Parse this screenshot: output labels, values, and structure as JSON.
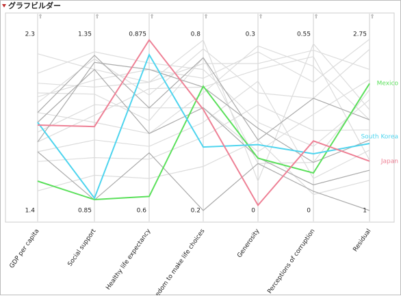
{
  "chart_data": {
    "type": "parallel",
    "title": "グラフビルダー",
    "axes": [
      {
        "label": "GDP per capita",
        "lim": [
          1.4,
          2.3
        ]
      },
      {
        "label": "Social support",
        "lim": [
          0.85,
          1.35
        ]
      },
      {
        "label": "Healthy life expectancy",
        "lim": [
          0.6,
          0.875
        ]
      },
      {
        "label": "Freedom to make life choices",
        "lim": [
          0.2,
          0.8
        ]
      },
      {
        "label": "Generosity",
        "lim": [
          0,
          0.3
        ]
      },
      {
        "label": "Perceptions of corruption",
        "lim": [
          0,
          0.55
        ]
      },
      {
        "label": "Residual",
        "lim": [
          1,
          2.75
        ]
      }
    ],
    "series": [
      {
        "color": "#dcdcdc",
        "values": [
          2.05,
          1.2,
          0.8,
          0.7,
          0.25,
          0.5,
          2.4
        ]
      },
      {
        "color": "#dcdcdc",
        "values": [
          1.95,
          1.28,
          0.78,
          0.75,
          0.2,
          0.35,
          2.6
        ]
      },
      {
        "color": "#dcdcdc",
        "values": [
          1.9,
          1.1,
          0.72,
          0.6,
          0.28,
          0.45,
          1.9
        ]
      },
      {
        "color": "#dcdcdc",
        "values": [
          2.1,
          1.3,
          0.83,
          0.68,
          0.15,
          0.2,
          2.1
        ]
      },
      {
        "color": "#dcdcdc",
        "values": [
          1.8,
          1.15,
          0.76,
          0.55,
          0.1,
          0.3,
          2.3
        ]
      },
      {
        "color": "#dcdcdc",
        "values": [
          1.7,
          1.05,
          0.7,
          0.5,
          0.22,
          0.1,
          1.6
        ]
      },
      {
        "color": "#dcdcdc",
        "values": [
          2.2,
          1.25,
          0.8,
          0.78,
          0.05,
          0.52,
          2.0
        ]
      },
      {
        "color": "#dcdcdc",
        "values": [
          1.65,
          1.0,
          0.68,
          0.45,
          0.18,
          0.25,
          1.8
        ]
      },
      {
        "color": "#dcdcdc",
        "values": [
          1.98,
          1.22,
          0.82,
          0.65,
          0.27,
          0.4,
          2.7
        ]
      },
      {
        "color": "#dcdcdc",
        "values": [
          1.5,
          0.95,
          0.65,
          0.35,
          0.12,
          0.05,
          1.3
        ]
      },
      {
        "color": "#dcdcdc",
        "values": [
          2.0,
          1.18,
          0.74,
          0.72,
          0.08,
          0.15,
          2.2
        ]
      },
      {
        "color": "#dcdcdc",
        "values": [
          1.75,
          1.12,
          0.79,
          0.62,
          0.24,
          0.48,
          1.5
        ]
      },
      {
        "color": "#a9a9a9",
        "values": [
          1.9,
          1.29,
          0.76,
          0.72,
          0.12,
          0.35,
          1.9
        ]
      },
      {
        "color": "#a9a9a9",
        "values": [
          1.75,
          1.27,
          0.82,
          0.62,
          0.14,
          0.15,
          1.7
        ]
      },
      {
        "color": "#a9a9a9",
        "values": [
          1.7,
          0.88,
          0.69,
          0.2,
          0.08,
          0.06,
          1.0
        ]
      },
      {
        "color": "#a9a9a9",
        "values": [
          1.85,
          1.25,
          0.72,
          0.55,
          0.09,
          0.08,
          1.4
        ]
      },
      {
        "name": "Mexico",
        "color": "#5be05b",
        "values": [
          1.55,
          0.881,
          0.622,
          0.623,
          0.089,
          0.117,
          2.26
        ]
      },
      {
        "name": "South Korea",
        "color": "#4dd4ee",
        "values": [
          1.85,
          0.885,
          0.843,
          0.416,
          0.112,
          0.177,
          1.665
        ]
      },
      {
        "name": "Japan",
        "color": "#ee8095",
        "values": [
          1.836,
          1.088,
          0.866,
          0.544,
          0.009,
          0.217,
          1.49
        ]
      }
    ]
  }
}
